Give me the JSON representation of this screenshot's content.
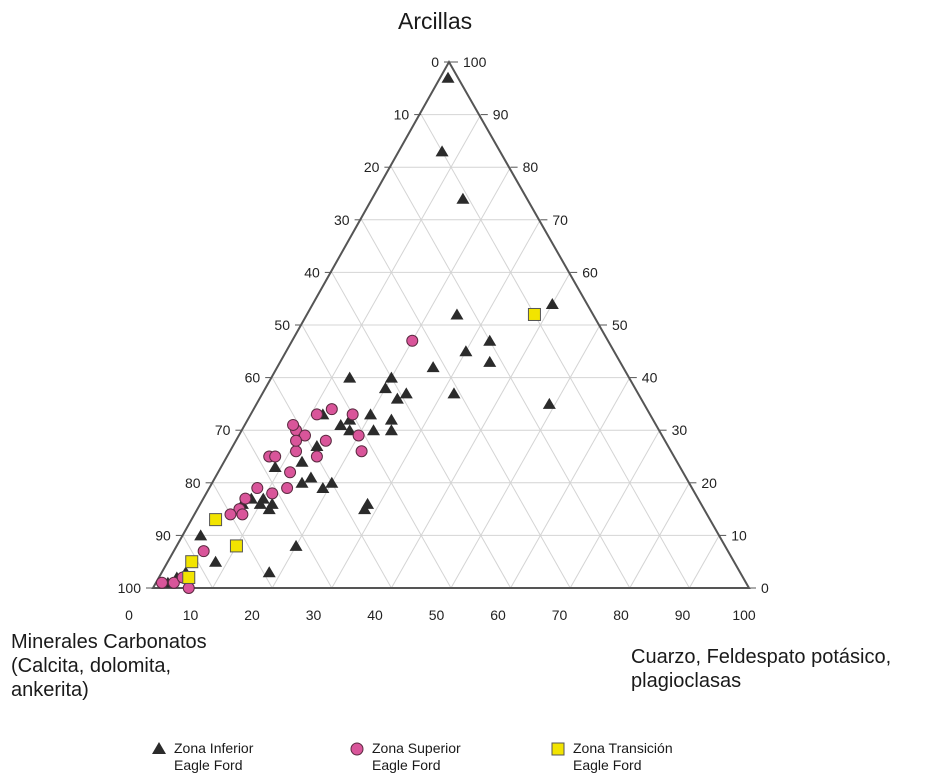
{
  "chart_data": {
    "type": "ternary-scatter",
    "title": "Arcillas",
    "axes": {
      "top": {
        "label": "Arcillas"
      },
      "left": {
        "label": "Minerales Carbonatos\n(Calcita, dolomita,\nankerita)"
      },
      "right": {
        "label": "Cuarzo, Feldespato potásico,\nplagioclasas"
      }
    },
    "ticks": {
      "bottom": [
        "0",
        "10",
        "20",
        "30",
        "40",
        "50",
        "60",
        "70",
        "80",
        "90",
        "100"
      ],
      "left": [
        "0",
        "10",
        "20",
        "30",
        "40",
        "50",
        "60",
        "70",
        "80",
        "90",
        "100"
      ],
      "right": [
        "100",
        "90",
        "80",
        "70",
        "60",
        "50",
        "40",
        "30",
        "20",
        "10",
        "0"
      ]
    },
    "grid": true,
    "legend_position": "bottom",
    "series": [
      {
        "name": "Zona Inferior Eagle Ford",
        "legend_lines": [
          "Zona Inferior",
          "Eagle Ford"
        ],
        "marker": "triangle",
        "color": "#2b2b2b",
        "points_cuarzo_arcillas": [
          [
            1,
            97
          ],
          [
            7,
            83
          ],
          [
            15,
            74
          ],
          [
            25,
            52
          ],
          [
            40,
            54
          ],
          [
            32,
            37
          ],
          [
            49,
            35
          ],
          [
            33,
            47
          ],
          [
            30,
            45
          ],
          [
            35,
            43
          ],
          [
            26,
            42
          ],
          [
            24,
            37
          ],
          [
            13,
            40
          ],
          [
            20,
            40
          ],
          [
            20,
            38
          ],
          [
            23,
            36
          ],
          [
            20,
            33
          ],
          [
            17,
            32
          ],
          [
            16,
            31
          ],
          [
            12,
            33
          ],
          [
            24,
            32
          ],
          [
            18,
            30
          ],
          [
            22,
            30
          ],
          [
            25,
            30
          ],
          [
            14,
            27
          ],
          [
            13,
            24
          ],
          [
            9,
            23
          ],
          [
            16,
            21
          ],
          [
            15,
            20
          ],
          [
            20,
            20
          ],
          [
            19,
            19
          ],
          [
            10,
            17
          ],
          [
            8,
            17
          ],
          [
            10,
            16
          ],
          [
            7,
            16
          ],
          [
            12,
            16
          ],
          [
            28,
            16
          ],
          [
            12,
            15
          ],
          [
            28,
            15
          ],
          [
            20,
            8
          ],
          [
            3,
            10
          ],
          [
            8,
            5
          ],
          [
            18,
            3
          ],
          [
            4,
            3
          ],
          [
            2,
            1
          ],
          [
            3,
            2
          ]
        ]
      },
      {
        "name": "Zona Superior Eagle Ford",
        "legend_lines": [
          "Zona Superior",
          "Eagle Ford"
        ],
        "marker": "circle",
        "color": "#d9559a",
        "points_cuarzo_arcillas": [
          [
            20,
            47
          ],
          [
            17,
            33
          ],
          [
            11,
            26
          ],
          [
            9,
            30
          ],
          [
            15,
            28
          ],
          [
            11,
            33
          ],
          [
            11,
            29
          ],
          [
            20,
            29
          ],
          [
            15,
            25
          ],
          [
            8,
            19
          ],
          [
            7,
            15
          ],
          [
            7,
            17
          ],
          [
            8,
            14
          ],
          [
            6,
            14
          ],
          [
            12,
            22
          ],
          [
            13,
            19
          ],
          [
            11,
            18
          ],
          [
            22,
            26
          ],
          [
            13,
            34
          ],
          [
            8,
            31
          ],
          [
            10,
            28
          ],
          [
            7,
            25
          ],
          [
            8,
            25
          ],
          [
            5,
            7
          ],
          [
            5,
            2
          ],
          [
            1,
            1
          ],
          [
            3,
            1
          ],
          [
            4,
            2
          ],
          [
            6,
            0
          ]
        ]
      },
      {
        "name": "Zona Transición Eagle Ford",
        "legend_lines": [
          "Zona Transición",
          "Eagle Ford"
        ],
        "marker": "square",
        "color": "#f2e400",
        "points_cuarzo_arcillas": [
          [
            38,
            52
          ],
          [
            4,
            13
          ],
          [
            10,
            8
          ],
          [
            4,
            5
          ],
          [
            5,
            2
          ]
        ]
      }
    ]
  }
}
